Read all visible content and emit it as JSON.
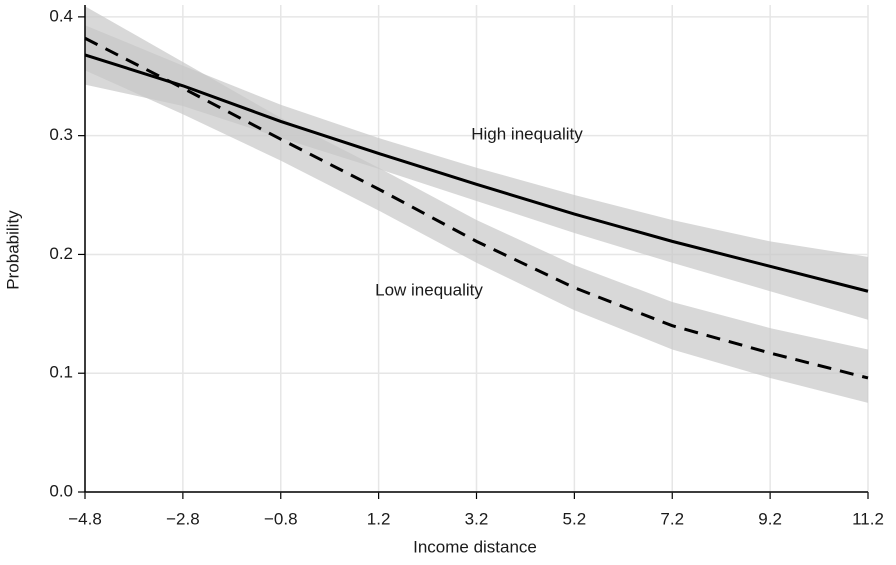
{
  "chart_data": {
    "type": "line",
    "x_label": "Income distance",
    "y_label": "Probability",
    "x": [
      -4.8,
      -2.8,
      -0.8,
      1.2,
      3.2,
      5.2,
      7.2,
      9.2,
      11.2
    ],
    "series": [
      {
        "name": "High inequality",
        "color": "#000000",
        "dash": false,
        "values": [
          0.368,
          0.342,
          0.312,
          0.285,
          0.259,
          0.234,
          0.211,
          0.19,
          0.169
        ],
        "lower": [
          0.343,
          0.325,
          0.298,
          0.272,
          0.245,
          0.218,
          0.193,
          0.169,
          0.145
        ],
        "upper": [
          0.393,
          0.359,
          0.326,
          0.298,
          0.273,
          0.25,
          0.229,
          0.211,
          0.198
        ]
      },
      {
        "name": "Low inequality",
        "color": "#000000",
        "dash": true,
        "values": [
          0.382,
          0.34,
          0.297,
          0.255,
          0.211,
          0.172,
          0.14,
          0.117,
          0.096
        ],
        "lower": [
          0.355,
          0.318,
          0.279,
          0.237,
          0.193,
          0.153,
          0.12,
          0.096,
          0.075
        ],
        "upper": [
          0.409,
          0.362,
          0.315,
          0.273,
          0.229,
          0.191,
          0.16,
          0.138,
          0.12
        ]
      }
    ],
    "band_color": "#c8c8c8",
    "xlim": [
      -4.8,
      11.2
    ],
    "xticks": [
      {
        "value": -4.8,
        "label": "−4.8"
      },
      {
        "value": -2.8,
        "label": "−2.8"
      },
      {
        "value": -0.8,
        "label": "−0.8"
      },
      1.2,
      3.2,
      5.2,
      7.2,
      9.2,
      11.2
    ],
    "ylim": [
      0,
      0.41
    ],
    "yticks": [
      {
        "value": 0,
        "label": "0.0"
      },
      0.1,
      0.2,
      0.3,
      0.4
    ],
    "grid": true
  }
}
